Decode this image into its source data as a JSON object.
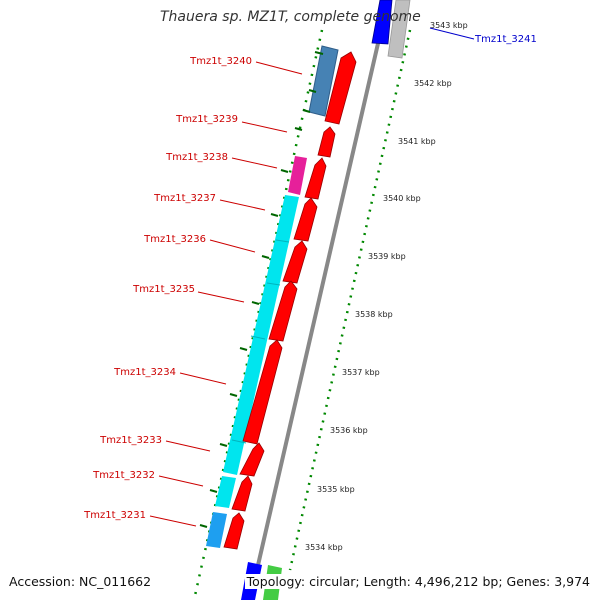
{
  "title": "Thauera sp. MZ1T, complete genome",
  "footer": {
    "accession": "Accession: NC_011662",
    "summary": "Topology: circular; Length: 4,496,212 bp; Genes: 3,974"
  },
  "ticks": [
    "3543 kbp",
    "3542 kbp",
    "3541 kbp",
    "3540 kbp",
    "3539 kbp",
    "3538 kbp",
    "3537 kbp",
    "3536 kbp",
    "3535 kbp",
    "3534 kbp"
  ],
  "genes": [
    {
      "label": "Tmz1t_3241",
      "color": "#0000cc"
    },
    {
      "label": "Tmz1t_3240",
      "color": "#cc0000"
    },
    {
      "label": "Tmz1t_3239",
      "color": "#cc0000"
    },
    {
      "label": "Tmz1t_3238",
      "color": "#cc0000"
    },
    {
      "label": "Tmz1t_3237",
      "color": "#cc0000"
    },
    {
      "label": "Tmz1t_3236",
      "color": "#cc0000"
    },
    {
      "label": "Tmz1t_3235",
      "color": "#cc0000"
    },
    {
      "label": "Tmz1t_3234",
      "color": "#cc0000"
    },
    {
      "label": "Tmz1t_3233",
      "color": "#cc0000"
    },
    {
      "label": "Tmz1t_3232",
      "color": "#cc0000"
    },
    {
      "label": "Tmz1t_3231",
      "color": "#cc0000"
    }
  ],
  "colors": {
    "backbone": "#888888",
    "cds": "#ff0000",
    "tick": "#006600",
    "cog_steelblue": "#4682b4",
    "cog_magenta": "#e6209a",
    "cog_cyan": "#00e5ee",
    "cog_lightblue": "#1e9ff0"
  }
}
